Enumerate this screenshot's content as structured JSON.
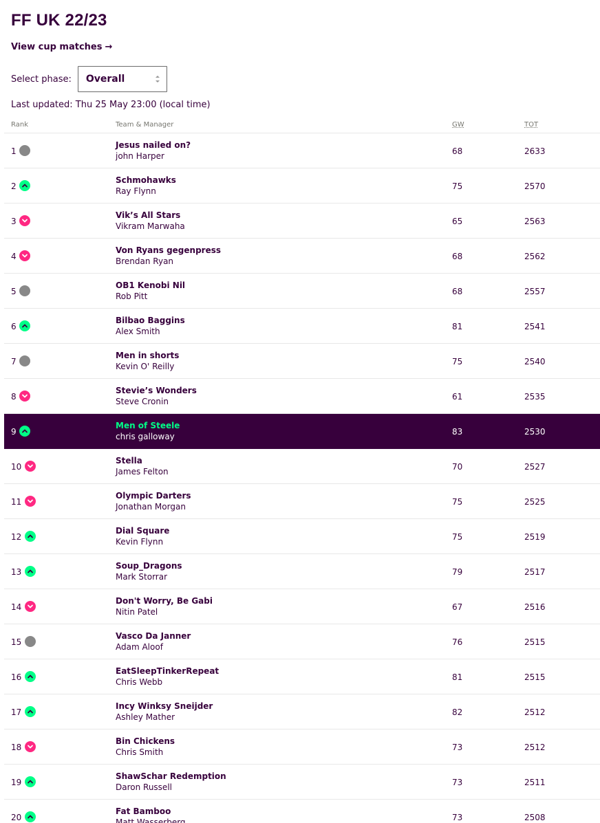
{
  "league": {
    "title": "FF UK 22/23",
    "cup_link": "View cup matches",
    "cup_arrow": "→"
  },
  "phase": {
    "label": "Select phase:",
    "selected": "Overall"
  },
  "last_updated": "Last updated: Thu 25 May 23:00 (local time)",
  "columns": {
    "rank": "Rank",
    "team": "Team & Manager",
    "gw": "GW",
    "tot": "TOT"
  },
  "colors": {
    "brand": "#37003c",
    "up": "#00ff87",
    "down": "#ff2882",
    "same": "#888888"
  },
  "rows": [
    {
      "rank": "1",
      "movement": "same",
      "team": "Jesus nailed on?",
      "manager": "john Harper",
      "gw": "68",
      "tot": "2633"
    },
    {
      "rank": "2",
      "movement": "up",
      "team": "Schmohawks",
      "manager": "Ray Flynn",
      "gw": "75",
      "tot": "2570"
    },
    {
      "rank": "3",
      "movement": "down",
      "team": "Vik’s All Stars",
      "manager": "Vikram Marwaha",
      "gw": "65",
      "tot": "2563"
    },
    {
      "rank": "4",
      "movement": "down",
      "team": "Von Ryans gegenpress",
      "manager": "Brendan Ryan",
      "gw": "68",
      "tot": "2562"
    },
    {
      "rank": "5",
      "movement": "same",
      "team": "OB1 Kenobi Nil",
      "manager": "Rob Pitt",
      "gw": "68",
      "tot": "2557"
    },
    {
      "rank": "6",
      "movement": "up",
      "team": "Bilbao Baggins",
      "manager": "Alex Smith",
      "gw": "81",
      "tot": "2541"
    },
    {
      "rank": "7",
      "movement": "same",
      "team": "Men in shorts",
      "manager": "Kevin O' Reilly",
      "gw": "75",
      "tot": "2540"
    },
    {
      "rank": "8",
      "movement": "down",
      "team": "Stevie’s Wonders",
      "manager": "Steve Cronin",
      "gw": "61",
      "tot": "2535"
    },
    {
      "rank": "9",
      "movement": "up",
      "team": "Men of Steele",
      "manager": "chris galloway",
      "gw": "83",
      "tot": "2530",
      "highlight": true
    },
    {
      "rank": "10",
      "movement": "down",
      "team": "Stella",
      "manager": "James Felton",
      "gw": "70",
      "tot": "2527"
    },
    {
      "rank": "11",
      "movement": "down",
      "team": "Olympic Darters",
      "manager": "Jonathan Morgan",
      "gw": "75",
      "tot": "2525"
    },
    {
      "rank": "12",
      "movement": "up",
      "team": "Dial Square",
      "manager": "Kevin Flynn",
      "gw": "75",
      "tot": "2519"
    },
    {
      "rank": "13",
      "movement": "up",
      "team": "Soup_Dragons",
      "manager": "Mark Storrar",
      "gw": "79",
      "tot": "2517"
    },
    {
      "rank": "14",
      "movement": "down",
      "team": "Don't Worry, Be Gabi",
      "manager": "Nitin Patel",
      "gw": "67",
      "tot": "2516"
    },
    {
      "rank": "15",
      "movement": "same",
      "team": "Vasco Da Janner",
      "manager": "Adam Aloof",
      "gw": "76",
      "tot": "2515"
    },
    {
      "rank": "16",
      "movement": "up",
      "team": "EatSleepTinkerRepeat",
      "manager": "Chris Webb",
      "gw": "81",
      "tot": "2515"
    },
    {
      "rank": "17",
      "movement": "up",
      "team": "Incy Winksy Sneijder",
      "manager": "Ashley Mather",
      "gw": "82",
      "tot": "2512"
    },
    {
      "rank": "18",
      "movement": "down",
      "team": "Bin Chickens",
      "manager": "Chris Smith",
      "gw": "73",
      "tot": "2512"
    },
    {
      "rank": "19",
      "movement": "up",
      "team": "ShawSchar Redemption",
      "manager": "Daron Russell",
      "gw": "73",
      "tot": "2511"
    },
    {
      "rank": "20",
      "movement": "up",
      "team": "Fat Bamboo",
      "manager": "Matt Wasserberg",
      "gw": "73",
      "tot": "2508"
    }
  ]
}
